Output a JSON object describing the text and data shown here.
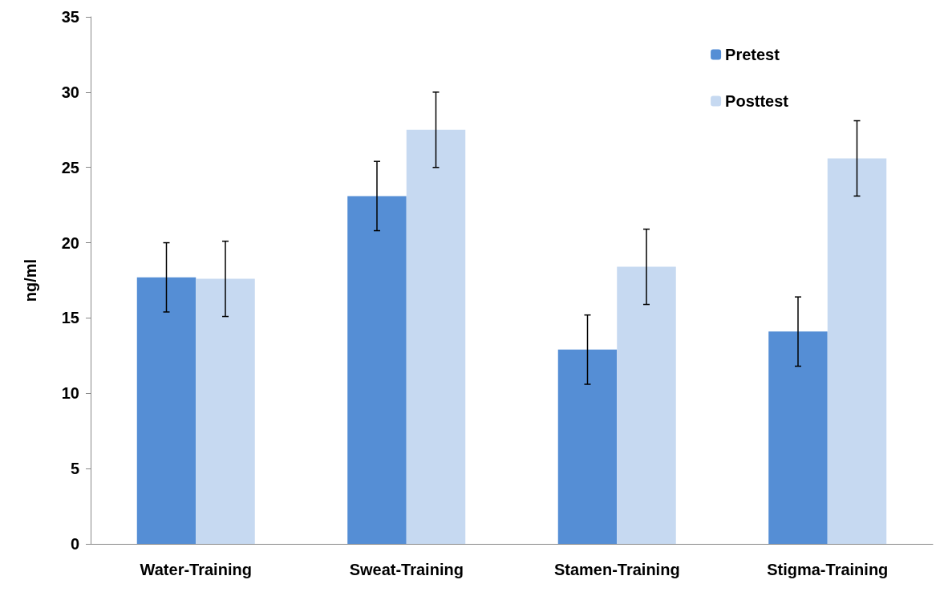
{
  "chart_data": {
    "type": "bar",
    "ylabel": "ng/ml",
    "categories": [
      "Water-Training",
      "Sweat-Training",
      "Stamen-Training",
      "Stigma-Training"
    ],
    "series": [
      {
        "name": "Pretest",
        "color": "#558ed5",
        "values": [
          17.7,
          23.1,
          12.9,
          14.1
        ],
        "errors": [
          2.3,
          2.3,
          2.3,
          2.3
        ]
      },
      {
        "name": "Posttest",
        "color": "#c6d9f1",
        "values": [
          17.6,
          27.5,
          18.4,
          25.6
        ],
        "errors": [
          2.5,
          2.5,
          2.5,
          2.5
        ]
      }
    ],
    "ylim": [
      0,
      35
    ],
    "yticks": [
      0,
      5,
      10,
      15,
      20,
      25,
      30,
      35
    ],
    "grid": false,
    "legend": "top right"
  }
}
